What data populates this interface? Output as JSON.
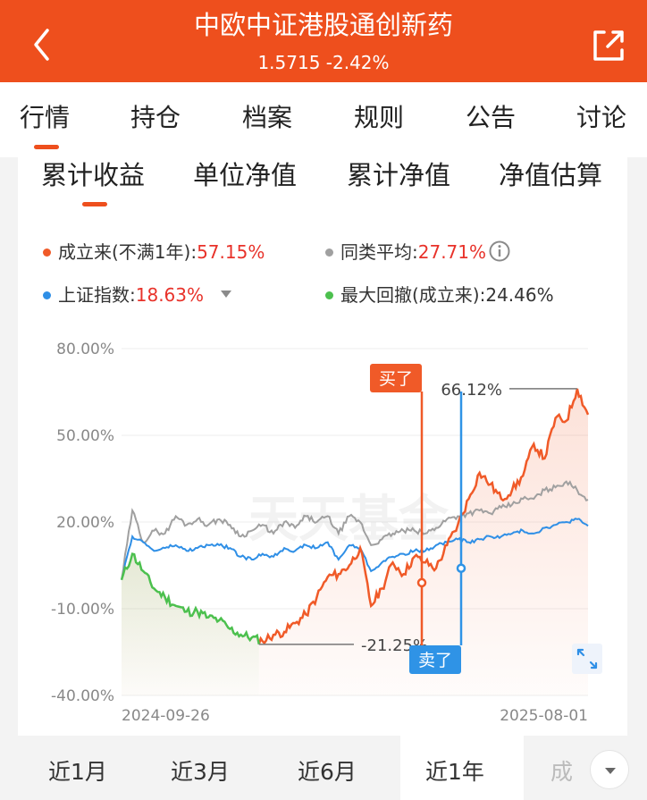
{
  "header": {
    "title": "中欧中证港股通创新药",
    "nav": "1.5715",
    "change": "-2.42%"
  },
  "tabs": [
    "行情",
    "持仓",
    "档案",
    "规则",
    "公告",
    "讨论"
  ],
  "subtabs": [
    "累计收益",
    "单位净值",
    "累计净值",
    "净值估算"
  ],
  "legend": {
    "fund_label": "成立来(不满1年):",
    "fund_value": "57.15%",
    "peer_label": "同类平均:",
    "peer_value": "27.71%",
    "index_label": "上证指数:",
    "index_value": "18.63%",
    "drawdown_label": "最大回撤(成立来):",
    "drawdown_value": "24.46%"
  },
  "colors": {
    "accent": "#ee4f1d",
    "fund": "#f05a28",
    "peer": "#a0a0a0",
    "index": "#2f8fe6",
    "drawdown": "#4cc04e",
    "sell": "#2f93e6"
  },
  "chart_data": {
    "type": "line",
    "ylim": [
      -40,
      80
    ],
    "yticks": [
      "80.00%",
      "50.00%",
      "20.00%",
      "-10.00%",
      "-40.00%"
    ],
    "x_start_label": "2024-09-26",
    "x_end_label": "2025-08-01",
    "watermark": "天天基金",
    "series": [
      {
        "name": "成立来(不满1年)",
        "values": [
          0,
          9,
          3,
          -3,
          -6,
          -9,
          -11,
          -11,
          -13,
          -14,
          -17,
          -19,
          -20,
          -21.25,
          -19,
          -18,
          -15,
          -12,
          -6,
          1,
          2,
          5,
          11,
          -9,
          -3,
          6,
          2,
          8,
          6,
          4,
          12,
          19,
          28,
          37,
          33,
          28,
          31,
          36,
          47,
          42,
          56,
          55,
          66.12,
          57.15
        ]
      },
      {
        "name": "同类平均",
        "values": [
          0,
          24,
          13,
          17,
          16,
          22,
          19,
          21,
          19,
          21,
          19,
          15,
          17,
          19,
          16,
          20,
          18,
          22,
          20,
          22,
          16,
          22,
          20,
          12,
          14,
          16,
          17,
          17,
          16,
          18,
          21,
          22,
          23,
          24,
          23,
          25,
          26,
          28,
          28,
          31,
          32,
          34,
          31,
          27.71
        ]
      },
      {
        "name": "上证指数",
        "values": [
          0,
          15,
          13,
          10,
          11,
          12,
          10,
          11,
          12,
          12,
          11,
          8,
          7,
          9,
          8,
          11,
          10,
          12,
          11,
          13,
          7,
          12,
          11,
          3,
          6,
          8,
          9,
          10,
          10,
          12,
          13,
          14,
          13,
          14,
          15,
          15,
          16,
          17,
          16,
          18,
          19,
          20,
          21,
          18.63
        ]
      }
    ],
    "max_label": "66.12%",
    "min_label": "-21.25%",
    "buy_label": "买了",
    "sell_label": "卖了",
    "buy_value": -1,
    "sell_value": 4
  },
  "periods": [
    "近1月",
    "近3月",
    "近6月",
    "近1年",
    "成"
  ],
  "active_period": "近1年"
}
